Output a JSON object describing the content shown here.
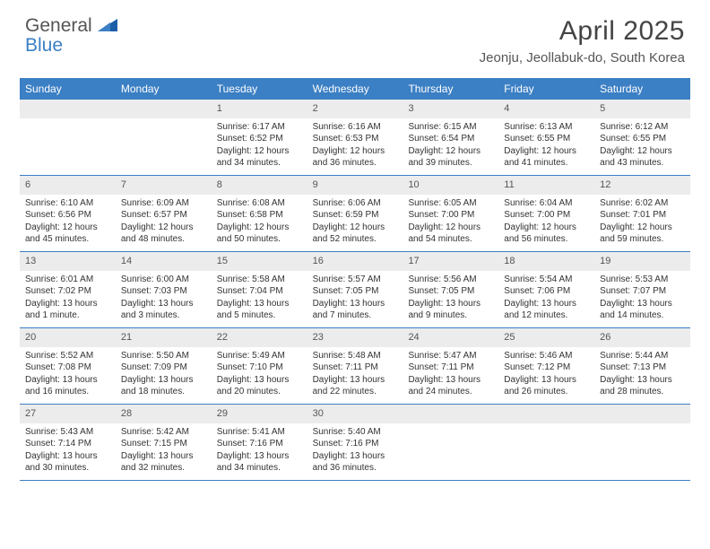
{
  "logo": {
    "general": "General",
    "blue": "Blue"
  },
  "title": "April 2025",
  "location": "Jeonju, Jeollabuk-do, South Korea",
  "colors": {
    "header_blue": "#3b7fc4",
    "daynum_bg": "#ececec",
    "text": "#333333",
    "subtext": "#555555"
  },
  "day_headers": [
    "Sunday",
    "Monday",
    "Tuesday",
    "Wednesday",
    "Thursday",
    "Friday",
    "Saturday"
  ],
  "weeks": [
    [
      null,
      null,
      {
        "n": "1",
        "sr": "Sunrise: 6:17 AM",
        "ss": "Sunset: 6:52 PM",
        "dl": "Daylight: 12 hours and 34 minutes."
      },
      {
        "n": "2",
        "sr": "Sunrise: 6:16 AM",
        "ss": "Sunset: 6:53 PM",
        "dl": "Daylight: 12 hours and 36 minutes."
      },
      {
        "n": "3",
        "sr": "Sunrise: 6:15 AM",
        "ss": "Sunset: 6:54 PM",
        "dl": "Daylight: 12 hours and 39 minutes."
      },
      {
        "n": "4",
        "sr": "Sunrise: 6:13 AM",
        "ss": "Sunset: 6:55 PM",
        "dl": "Daylight: 12 hours and 41 minutes."
      },
      {
        "n": "5",
        "sr": "Sunrise: 6:12 AM",
        "ss": "Sunset: 6:55 PM",
        "dl": "Daylight: 12 hours and 43 minutes."
      }
    ],
    [
      {
        "n": "6",
        "sr": "Sunrise: 6:10 AM",
        "ss": "Sunset: 6:56 PM",
        "dl": "Daylight: 12 hours and 45 minutes."
      },
      {
        "n": "7",
        "sr": "Sunrise: 6:09 AM",
        "ss": "Sunset: 6:57 PM",
        "dl": "Daylight: 12 hours and 48 minutes."
      },
      {
        "n": "8",
        "sr": "Sunrise: 6:08 AM",
        "ss": "Sunset: 6:58 PM",
        "dl": "Daylight: 12 hours and 50 minutes."
      },
      {
        "n": "9",
        "sr": "Sunrise: 6:06 AM",
        "ss": "Sunset: 6:59 PM",
        "dl": "Daylight: 12 hours and 52 minutes."
      },
      {
        "n": "10",
        "sr": "Sunrise: 6:05 AM",
        "ss": "Sunset: 7:00 PM",
        "dl": "Daylight: 12 hours and 54 minutes."
      },
      {
        "n": "11",
        "sr": "Sunrise: 6:04 AM",
        "ss": "Sunset: 7:00 PM",
        "dl": "Daylight: 12 hours and 56 minutes."
      },
      {
        "n": "12",
        "sr": "Sunrise: 6:02 AM",
        "ss": "Sunset: 7:01 PM",
        "dl": "Daylight: 12 hours and 59 minutes."
      }
    ],
    [
      {
        "n": "13",
        "sr": "Sunrise: 6:01 AM",
        "ss": "Sunset: 7:02 PM",
        "dl": "Daylight: 13 hours and 1 minute."
      },
      {
        "n": "14",
        "sr": "Sunrise: 6:00 AM",
        "ss": "Sunset: 7:03 PM",
        "dl": "Daylight: 13 hours and 3 minutes."
      },
      {
        "n": "15",
        "sr": "Sunrise: 5:58 AM",
        "ss": "Sunset: 7:04 PM",
        "dl": "Daylight: 13 hours and 5 minutes."
      },
      {
        "n": "16",
        "sr": "Sunrise: 5:57 AM",
        "ss": "Sunset: 7:05 PM",
        "dl": "Daylight: 13 hours and 7 minutes."
      },
      {
        "n": "17",
        "sr": "Sunrise: 5:56 AM",
        "ss": "Sunset: 7:05 PM",
        "dl": "Daylight: 13 hours and 9 minutes."
      },
      {
        "n": "18",
        "sr": "Sunrise: 5:54 AM",
        "ss": "Sunset: 7:06 PM",
        "dl": "Daylight: 13 hours and 12 minutes."
      },
      {
        "n": "19",
        "sr": "Sunrise: 5:53 AM",
        "ss": "Sunset: 7:07 PM",
        "dl": "Daylight: 13 hours and 14 minutes."
      }
    ],
    [
      {
        "n": "20",
        "sr": "Sunrise: 5:52 AM",
        "ss": "Sunset: 7:08 PM",
        "dl": "Daylight: 13 hours and 16 minutes."
      },
      {
        "n": "21",
        "sr": "Sunrise: 5:50 AM",
        "ss": "Sunset: 7:09 PM",
        "dl": "Daylight: 13 hours and 18 minutes."
      },
      {
        "n": "22",
        "sr": "Sunrise: 5:49 AM",
        "ss": "Sunset: 7:10 PM",
        "dl": "Daylight: 13 hours and 20 minutes."
      },
      {
        "n": "23",
        "sr": "Sunrise: 5:48 AM",
        "ss": "Sunset: 7:11 PM",
        "dl": "Daylight: 13 hours and 22 minutes."
      },
      {
        "n": "24",
        "sr": "Sunrise: 5:47 AM",
        "ss": "Sunset: 7:11 PM",
        "dl": "Daylight: 13 hours and 24 minutes."
      },
      {
        "n": "25",
        "sr": "Sunrise: 5:46 AM",
        "ss": "Sunset: 7:12 PM",
        "dl": "Daylight: 13 hours and 26 minutes."
      },
      {
        "n": "26",
        "sr": "Sunrise: 5:44 AM",
        "ss": "Sunset: 7:13 PM",
        "dl": "Daylight: 13 hours and 28 minutes."
      }
    ],
    [
      {
        "n": "27",
        "sr": "Sunrise: 5:43 AM",
        "ss": "Sunset: 7:14 PM",
        "dl": "Daylight: 13 hours and 30 minutes."
      },
      {
        "n": "28",
        "sr": "Sunrise: 5:42 AM",
        "ss": "Sunset: 7:15 PM",
        "dl": "Daylight: 13 hours and 32 minutes."
      },
      {
        "n": "29",
        "sr": "Sunrise: 5:41 AM",
        "ss": "Sunset: 7:16 PM",
        "dl": "Daylight: 13 hours and 34 minutes."
      },
      {
        "n": "30",
        "sr": "Sunrise: 5:40 AM",
        "ss": "Sunset: 7:16 PM",
        "dl": "Daylight: 13 hours and 36 minutes."
      },
      null,
      null,
      null
    ]
  ]
}
